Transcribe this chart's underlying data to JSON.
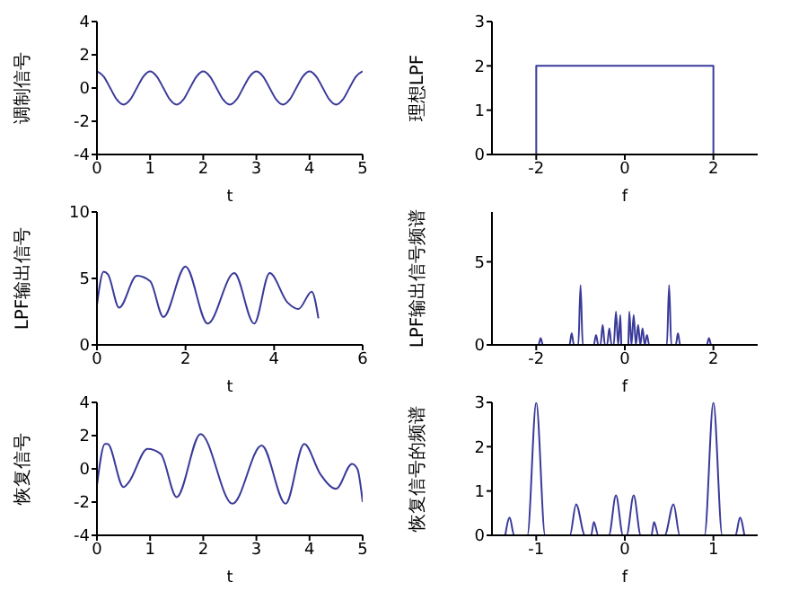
{
  "chart_data": [
    {
      "type": "line",
      "ylabel": "调制信号",
      "xlabel": "t",
      "xlim": [
        0,
        5
      ],
      "xticks": [
        0,
        1,
        2,
        3,
        4,
        5
      ],
      "ylim": [
        -4,
        4
      ],
      "yticks": [
        -4,
        -2,
        0,
        2,
        4
      ],
      "grid": false,
      "series": [
        {
          "color": "#3a3a9a",
          "x": [
            0,
            0.125,
            0.25,
            0.375,
            0.5,
            0.625,
            0.75,
            0.875,
            1,
            1.125,
            1.25,
            1.375,
            1.5,
            1.625,
            1.75,
            1.875,
            2,
            2.125,
            2.25,
            2.375,
            2.5,
            2.625,
            2.75,
            2.875,
            3,
            3.125,
            3.25,
            3.375,
            3.5,
            3.625,
            3.75,
            3.875,
            4,
            4.125,
            4.25,
            4.375,
            4.5,
            4.625,
            4.75,
            4.875,
            5
          ],
          "values": [
            1,
            0.7,
            0,
            -0.7,
            -1,
            -0.7,
            0,
            0.7,
            1,
            0.7,
            0,
            -0.7,
            -1,
            -0.7,
            0,
            0.7,
            1,
            0.7,
            0,
            -0.7,
            -1,
            -0.7,
            0,
            0.7,
            1,
            0.7,
            0,
            -0.7,
            -1,
            -0.7,
            0,
            0.7,
            1,
            0.7,
            0,
            -0.7,
            -1,
            -0.7,
            0,
            0.7,
            1
          ]
        }
      ]
    },
    {
      "type": "line",
      "ylabel": "理想LPF",
      "xlabel": "f",
      "xlim": [
        -3,
        3
      ],
      "xticks": [
        -2,
        0,
        2
      ],
      "ylim": [
        0,
        3
      ],
      "yticks": [
        0,
        1,
        2,
        3
      ],
      "grid": false,
      "series": [
        {
          "color": "#3a3a9a",
          "x": [
            -2,
            -2,
            2,
            2
          ],
          "values": [
            0,
            2,
            2,
            0
          ]
        }
      ]
    },
    {
      "type": "line",
      "ylabel": "LPF输出信号",
      "xlabel": "t",
      "xlim": [
        0,
        6
      ],
      "xticks": [
        0,
        2,
        4,
        6
      ],
      "ylim": [
        0,
        10
      ],
      "yticks": [
        0,
        5,
        10
      ],
      "grid": false,
      "series": [
        {
          "color": "#3a3a9a",
          "x": [
            0,
            0.15,
            0.25,
            0.5,
            0.9,
            1.2,
            1.5,
            2.0,
            2.5,
            3.1,
            3.55,
            3.9,
            4.3,
            4.55,
            4.85,
            5
          ],
          "values": [
            3,
            5.5,
            5.3,
            2.8,
            5.2,
            4.8,
            2.1,
            5.9,
            1.6,
            5.4,
            1.6,
            5.4,
            3.2,
            2.7,
            4,
            2
          ]
        }
      ]
    },
    {
      "type": "line",
      "ylabel": "LPF输出信号频谱",
      "xlabel": "f",
      "xlim": [
        -3,
        3
      ],
      "xticks": [
        -2,
        0,
        2
      ],
      "ylim": [
        0,
        8
      ],
      "yticks": [
        0,
        5
      ],
      "grid": false,
      "series": [
        {
          "color": "#3a3a9a",
          "x": [
            -2.8,
            -1.95,
            -1.9,
            -1.85,
            -1.25,
            -1.2,
            -1.15,
            -1.05,
            -1,
            -0.95,
            -0.7,
            -0.65,
            -0.6,
            -0.55,
            -0.5,
            -0.45,
            -0.4,
            -0.35,
            -0.3,
            -0.25,
            -0.2,
            -0.15,
            -0.1,
            -0.08,
            -0.05,
            -0.02,
            0.02,
            0.05,
            0.08,
            0.1,
            0.15,
            0.2,
            0.25,
            0.3,
            0.35,
            0.4,
            0.45,
            0.5,
            0.55,
            0.95,
            1,
            1.05,
            1.15,
            1.2,
            1.25,
            1.85,
            1.9,
            1.95,
            2.8
          ],
          "values": [
            0,
            0,
            0.4,
            0,
            0,
            0.7,
            0,
            0,
            3.6,
            0,
            0,
            0.6,
            0,
            0,
            1.2,
            0,
            0,
            1,
            0,
            0,
            2,
            0,
            1.8,
            0,
            null,
            0,
            0,
            null,
            0,
            2,
            0,
            1.8,
            0,
            1.2,
            0,
            1,
            0,
            0.6,
            0,
            0,
            3.6,
            0,
            0,
            0.7,
            0,
            0,
            0.4,
            0,
            0
          ]
        }
      ]
    },
    {
      "type": "line",
      "ylabel": "恢复信号",
      "xlabel": "t",
      "xlim": [
        0,
        5
      ],
      "xticks": [
        0,
        1,
        2,
        3,
        4,
        5
      ],
      "ylim": [
        -4,
        4
      ],
      "yticks": [
        -4,
        -2,
        0,
        2,
        4
      ],
      "grid": false,
      "series": [
        {
          "color": "#3a3a9a",
          "x": [
            0,
            0.15,
            0.2,
            0.5,
            0.6,
            0.95,
            1.2,
            1.5,
            1.95,
            2.55,
            3.1,
            3.55,
            3.9,
            4.2,
            4.5,
            4.8,
            4.9,
            5
          ],
          "values": [
            -1,
            1.5,
            1.5,
            -1.1,
            -0.8,
            1.2,
            0.9,
            -1.7,
            2.1,
            -2.1,
            1.4,
            -2.1,
            1.5,
            -0.3,
            -1.2,
            0.3,
            0,
            -2
          ]
        }
      ]
    },
    {
      "type": "line",
      "ylabel": "恢复信号的频谱",
      "xlabel": "f",
      "xlim": [
        -1.5,
        1.5
      ],
      "xticks": [
        -1,
        0,
        1
      ],
      "ylim": [
        0,
        3
      ],
      "yticks": [
        0,
        1,
        2,
        3
      ],
      "grid": false,
      "series": [
        {
          "color": "#3a3a9a",
          "x": [
            -1.35,
            -1.3,
            -1.25,
            -1.1,
            -1,
            -0.9,
            -0.62,
            -0.55,
            -0.45,
            -0.38,
            -0.35,
            -0.3,
            -0.18,
            -0.1,
            -0.02,
            0.02,
            0.1,
            0.18,
            0.3,
            0.33,
            0.38,
            0.45,
            0.55,
            0.62,
            0.9,
            1,
            1.1,
            1.25,
            1.3,
            1.35
          ],
          "values": [
            0,
            0.4,
            0,
            0,
            3,
            0,
            0,
            0.7,
            0,
            0,
            0.3,
            0,
            0,
            0.9,
            0,
            0,
            0.9,
            0,
            0,
            0.3,
            0,
            0,
            0.7,
            0,
            0,
            3,
            0,
            0,
            0.4,
            0
          ]
        }
      ]
    }
  ]
}
